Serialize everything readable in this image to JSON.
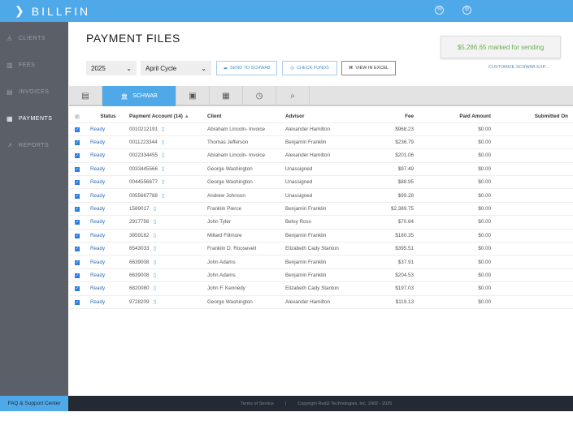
{
  "app": {
    "name": "BILLFIN"
  },
  "sidebar": {
    "items": [
      {
        "label": "CLIENTS",
        "icon": "user-icon"
      },
      {
        "label": "FEES",
        "icon": "calculator-icon"
      },
      {
        "label": "INVOICES",
        "icon": "invoice-icon"
      },
      {
        "label": "PAYMENTS",
        "icon": "payments-icon",
        "active": true
      },
      {
        "label": "REPORTS",
        "icon": "chart-icon"
      }
    ]
  },
  "page": {
    "title": "PAYMENT FILES",
    "marked": "$5,286.65 marked for sending"
  },
  "filters": {
    "year": "2025",
    "cycle": "April Cycle"
  },
  "toolbar": {
    "send": "SEND TO SCHWAB",
    "check": "CHECK FUNDS",
    "excel": "VIEW IN EXCEL",
    "customize": "CUSTOMIZE SCHWAB EXP..."
  },
  "tabs": {
    "schwab": "SCHWAB"
  },
  "table": {
    "headers": {
      "status": "Status",
      "account": "Payment Account (14)",
      "client": "Client",
      "advisor": "Advisor",
      "fee": "Fee",
      "paid": "Paid Amount",
      "submitted": "Submitted On"
    },
    "rows": [
      {
        "status": "Ready",
        "account": "0010212191",
        "client": "Abraham Lincoln- Invoice",
        "advisor": "Alexander Hamilton",
        "fee": "$968.23",
        "paid": "$0.00",
        "submitted": ""
      },
      {
        "status": "Ready",
        "account": "0011223344",
        "client": "Thomas Jefferson",
        "advisor": "Benjamin Franklin",
        "fee": "$236.79",
        "paid": "$0.00",
        "submitted": ""
      },
      {
        "status": "Ready",
        "account": "0022334455",
        "client": "Abraham Lincoln- Invoice",
        "advisor": "Alexander Hamilton",
        "fee": "$201.06",
        "paid": "$0.00",
        "submitted": ""
      },
      {
        "status": "Ready",
        "account": "0033445566",
        "client": "George Washington",
        "advisor": "Unassigned",
        "fee": "$97.49",
        "paid": "$0.00",
        "submitted": ""
      },
      {
        "status": "Ready",
        "account": "0044556677",
        "client": "George Washington",
        "advisor": "Unassigned",
        "fee": "$88.95",
        "paid": "$0.00",
        "submitted": ""
      },
      {
        "status": "Ready",
        "account": "0055667788",
        "client": "Andrew Johnson",
        "advisor": "Unassigned",
        "fee": "$99.28",
        "paid": "$0.00",
        "submitted": ""
      },
      {
        "status": "Ready",
        "account": "1589017",
        "client": "Franklin Pierce",
        "advisor": "Benjamin Franklin",
        "fee": "$2,389.75",
        "paid": "$0.00",
        "submitted": ""
      },
      {
        "status": "Ready",
        "account": "2917756",
        "client": "John Tyler",
        "advisor": "Betsy Ross",
        "fee": "$70.64",
        "paid": "$0.00",
        "submitted": ""
      },
      {
        "status": "Ready",
        "account": "3859182",
        "client": "Millard Fillmore",
        "advisor": "Benjamin Franklin",
        "fee": "$180.35",
        "paid": "$0.00",
        "submitted": ""
      },
      {
        "status": "Ready",
        "account": "6543033",
        "client": "Franklin D. Roosevelt",
        "advisor": "Elizabeth Cady Stanton",
        "fee": "$395.51",
        "paid": "$0.00",
        "submitted": ""
      },
      {
        "status": "Ready",
        "account": "6639008",
        "client": "John Adams",
        "advisor": "Benjamin Franklin",
        "fee": "$37.91",
        "paid": "$0.00",
        "submitted": ""
      },
      {
        "status": "Ready",
        "account": "6639008",
        "client": "John Adams",
        "advisor": "Benjamin Franklin",
        "fee": "$204.53",
        "paid": "$0.00",
        "submitted": ""
      },
      {
        "status": "Ready",
        "account": "6820080",
        "client": "John F. Kennedy",
        "advisor": "Elizabeth Cady Stanton",
        "fee": "$197.03",
        "paid": "$0.00",
        "submitted": ""
      },
      {
        "status": "Ready",
        "account": "9728209",
        "client": "George Washington",
        "advisor": "Alexander Hamilton",
        "fee": "$119.13",
        "paid": "$0.00",
        "submitted": ""
      }
    ]
  },
  "footer": {
    "faq": "FAQ & Support Center",
    "terms": "Terms of Service",
    "sep": "|",
    "copyright": "Copyright Redi2 Technologies, Inc. 2002 - 2025"
  },
  "colors": {
    "brand": "#4fa8e8",
    "sidebar": "#5b6068",
    "marked": "#6ab04c"
  }
}
